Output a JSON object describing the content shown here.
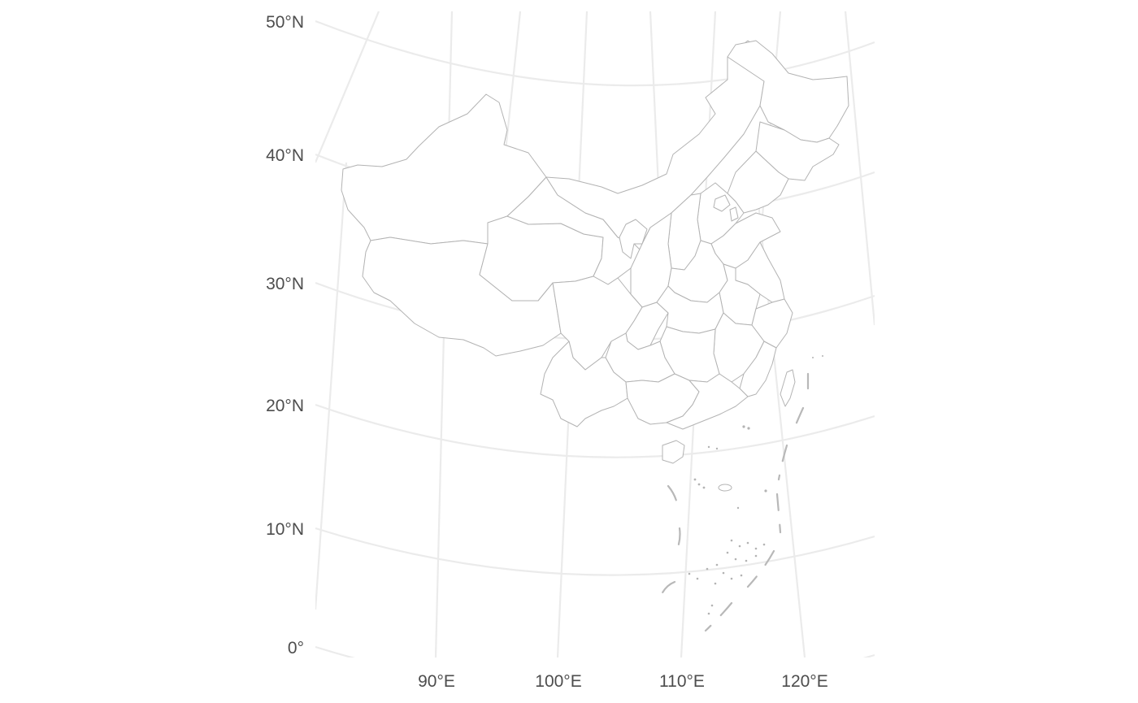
{
  "map": {
    "projection_family": "conic",
    "latitude_labels": [
      "50°N",
      "40°N",
      "30°N",
      "20°N",
      "10°N",
      "0°"
    ],
    "longitude_labels": [
      "90°E",
      "100°E",
      "110°E",
      "120°E"
    ],
    "colors": {
      "graticule": "#ebebeb",
      "boundary": "#b3b3b3",
      "land_fill": "#ffffff",
      "label": "#4d4d4d",
      "background": "#ffffff"
    }
  }
}
